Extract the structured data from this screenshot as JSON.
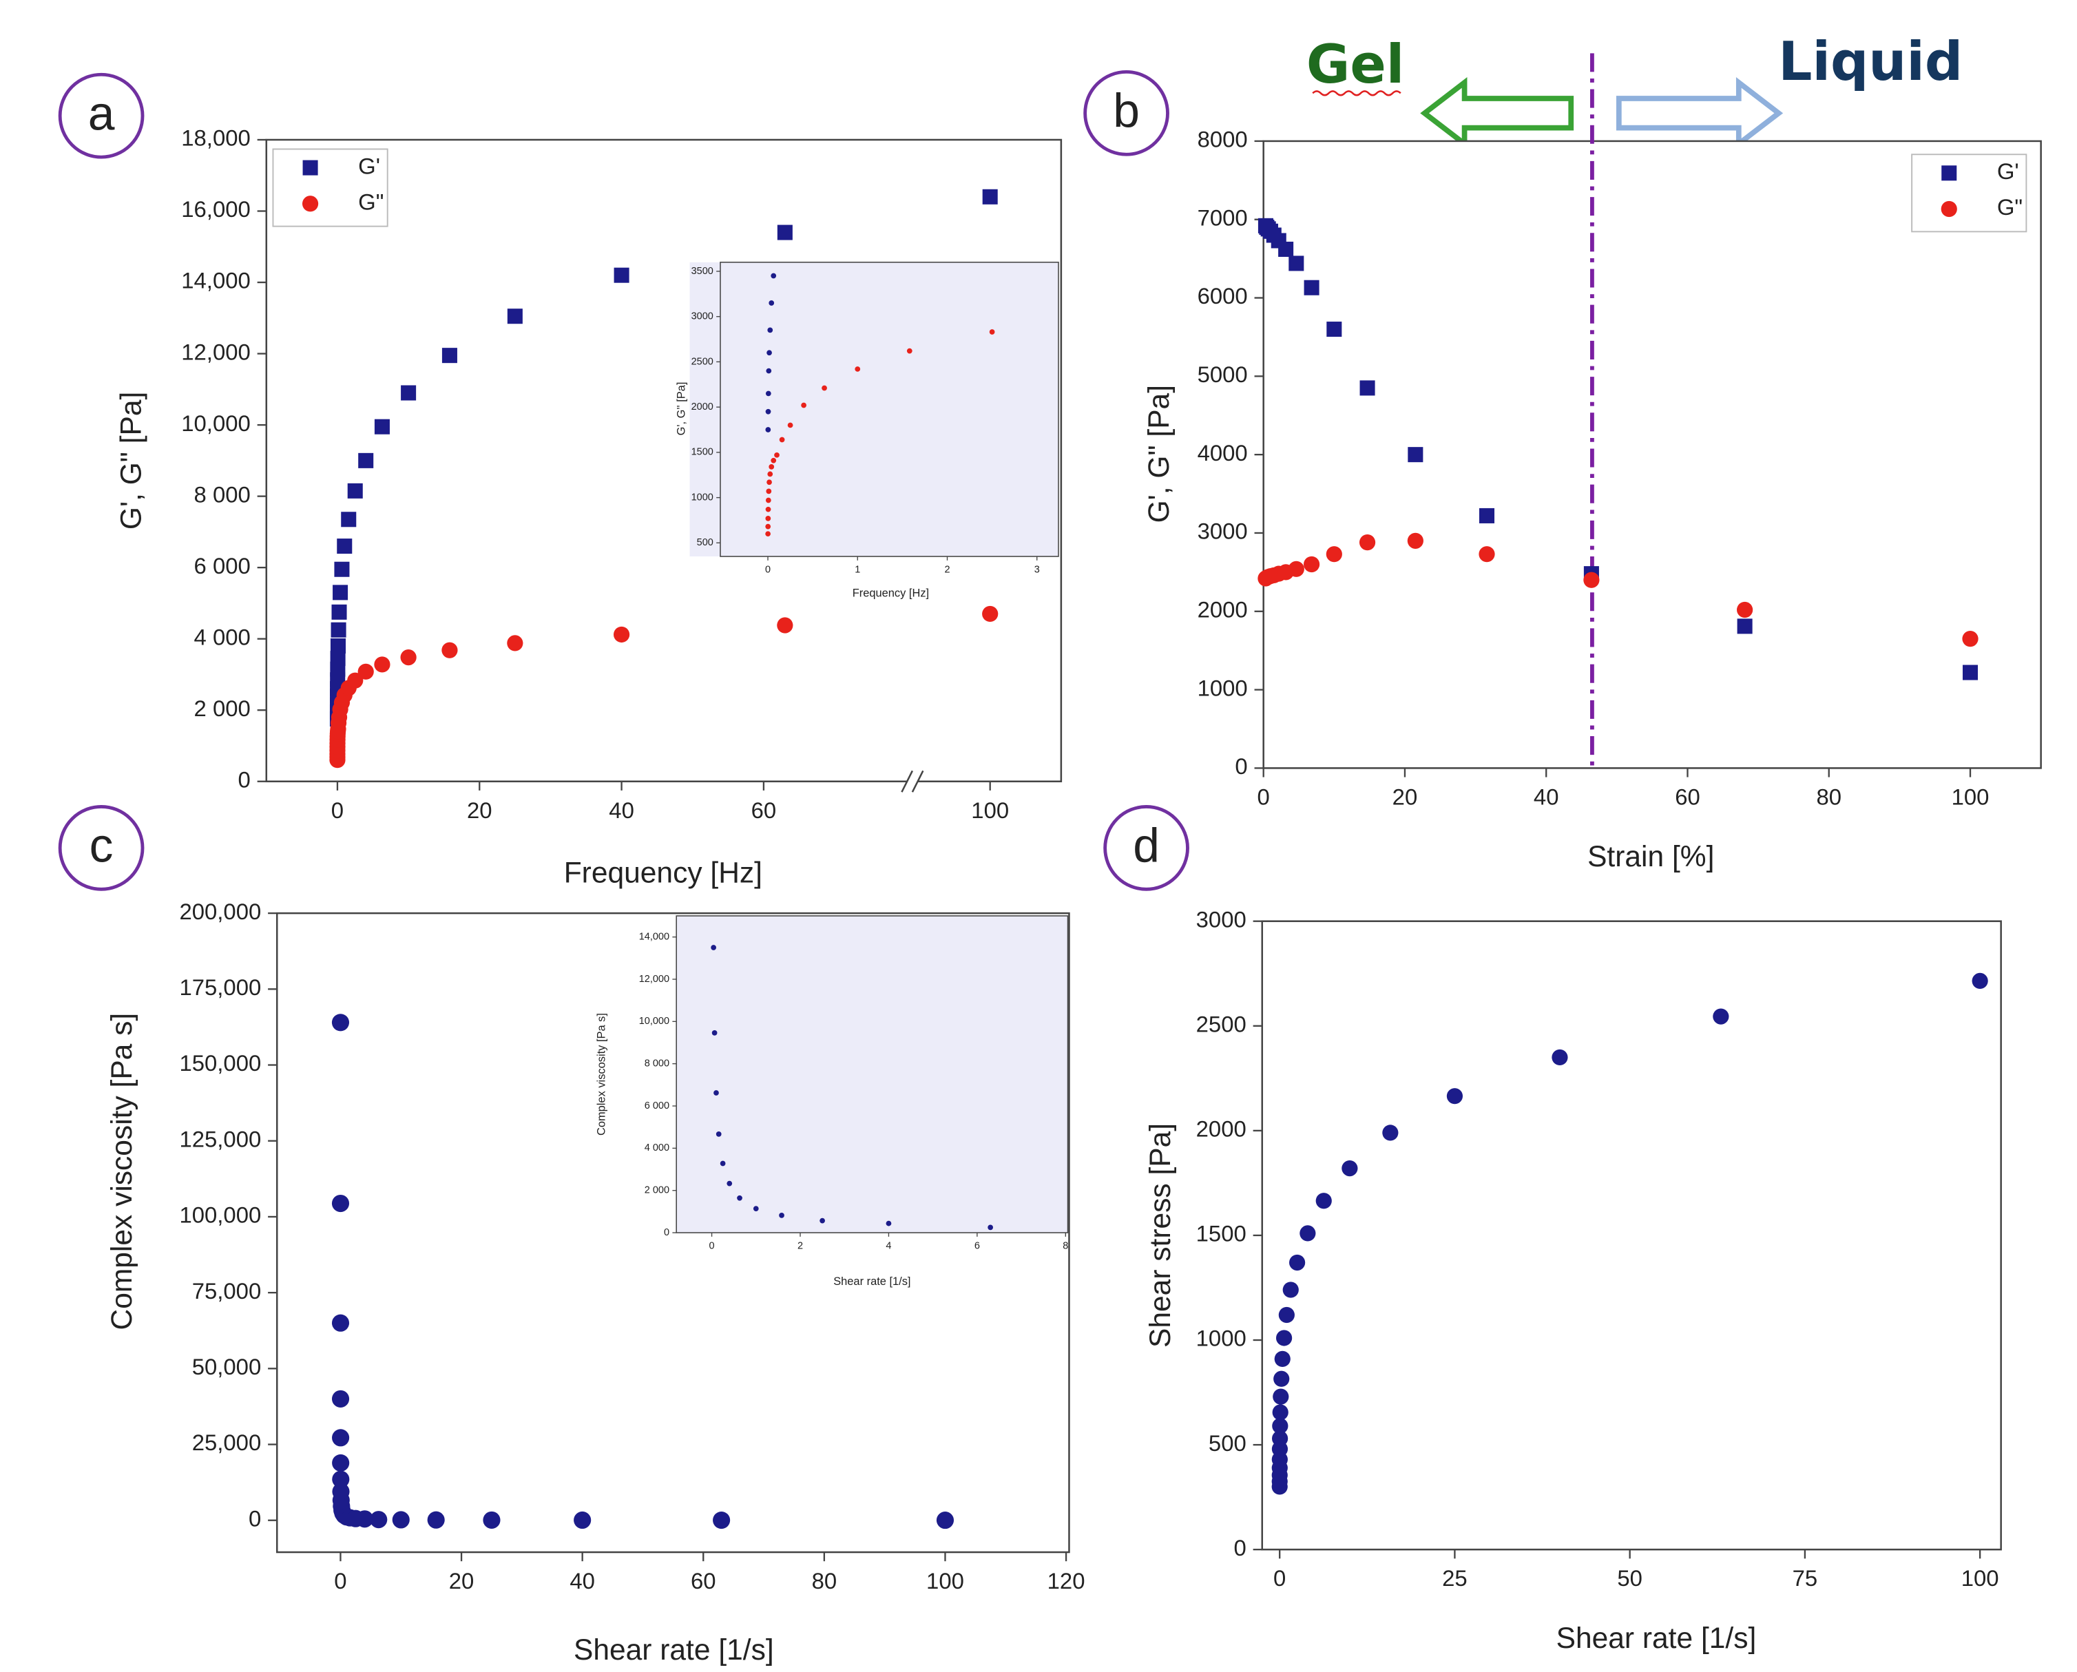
{
  "chart_data": [
    {
      "type": "scatter",
      "label": "a",
      "xlabel": "Frequency [Hz]",
      "ylabel": "G', G\" [Pa]",
      "xlim": [
        -10,
        110
      ],
      "xbreak": [
        80,
        90
      ],
      "xticks": [
        0,
        20,
        40,
        60,
        100
      ],
      "ylim": [
        0,
        18000
      ],
      "yticks": [
        0,
        {
          "value": 2000,
          "label": "2 000"
        },
        {
          "value": 4000,
          "label": "4 000"
        },
        {
          "value": 6000,
          "label": "6 000"
        },
        {
          "value": 8000,
          "label": "8 000"
        },
        {
          "value": 10000,
          "label": "10,000"
        },
        {
          "value": 12000,
          "label": "12,000"
        },
        {
          "value": 14000,
          "label": "14,000"
        },
        {
          "value": 16000,
          "label": "16,000"
        },
        {
          "value": 18000,
          "label": "18,000"
        }
      ],
      "legend": "upper left",
      "series": [
        {
          "name": "G'",
          "color": "#1c1c8a",
          "marker": "square",
          "x": [
            0.0025,
            0.004,
            0.0063,
            0.01,
            0.0158,
            0.025,
            0.04,
            0.063,
            0.1,
            0.158,
            0.25,
            0.4,
            0.63,
            1,
            1.58,
            2.5,
            4,
            6.3,
            10,
            15.8,
            25,
            40,
            63,
            100
          ],
          "values": [
            1750,
            1950,
            2150,
            2400,
            2600,
            2850,
            3150,
            3450,
            3800,
            4250,
            4750,
            5300,
            5950,
            6600,
            7350,
            8150,
            9000,
            9950,
            10900,
            11950,
            13050,
            14200,
            15400,
            16400
          ]
        },
        {
          "name": "G\"",
          "color": "#e8221b",
          "marker": "circle",
          "x": [
            0.001,
            0.00158,
            0.0025,
            0.004,
            0.0063,
            0.01,
            0.0158,
            0.025,
            0.04,
            0.063,
            0.1,
            0.158,
            0.25,
            0.4,
            0.63,
            1,
            1.58,
            2.5,
            4,
            6.3,
            10,
            15.8,
            25,
            40,
            63,
            100
          ],
          "values": [
            600,
            680,
            770,
            870,
            970,
            1070,
            1170,
            1260,
            1340,
            1410,
            1470,
            1640,
            1800,
            2020,
            2210,
            2420,
            2620,
            2830,
            3080,
            3280,
            3480,
            3680,
            3880,
            4120,
            4380,
            4700
          ]
        }
      ]
    },
    {
      "type": "scatter",
      "xlabel": "Frequency [Hz]",
      "ylabel": "G', G'' [Pa]",
      "background": "#ececf9",
      "xlim": [
        -0.53,
        3.24
      ],
      "xticks": [
        0,
        1,
        2,
        3
      ],
      "ylim": [
        350,
        3600
      ],
      "yticks": [
        500,
        1000,
        1500,
        2000,
        2500,
        3000,
        3500
      ],
      "series": [
        {
          "color": "#1c1c8a",
          "marker": "circle",
          "x": [
            0.0025,
            0.004,
            0.0063,
            0.01,
            0.0158,
            0.025,
            0.04,
            0.063
          ],
          "values": [
            1750,
            1950,
            2150,
            2400,
            2600,
            2850,
            3150,
            3450
          ]
        },
        {
          "color": "#e8221b",
          "marker": "circle",
          "x": [
            0.001,
            0.00158,
            0.0025,
            0.004,
            0.0063,
            0.01,
            0.0158,
            0.025,
            0.04,
            0.063,
            0.1,
            0.158,
            0.25,
            0.4,
            0.63,
            1,
            1.58,
            2.5
          ],
          "values": [
            600,
            680,
            770,
            870,
            970,
            1070,
            1170,
            1260,
            1340,
            1410,
            1470,
            1640,
            1800,
            2020,
            2210,
            2420,
            2620,
            2830
          ]
        }
      ]
    },
    {
      "type": "scatter",
      "label": "b",
      "xlabel": "Strain [%]",
      "ylabel": "G', G\" [Pa]",
      "annotations": [
        "Gel",
        "Liquid"
      ],
      "vline": 46.5,
      "vline_color": "#7b1fa2",
      "xlim": [
        0,
        110
      ],
      "xticks": [
        0,
        20,
        40,
        60,
        80,
        100
      ],
      "ylim": [
        0,
        8000
      ],
      "yticks": [
        0,
        1000,
        2000,
        3000,
        4000,
        5000,
        6000,
        7000,
        8000
      ],
      "legend": "upper right",
      "series": [
        {
          "name": "G'",
          "color": "#1c1c8a",
          "marker": "square",
          "x": [
            0.316,
            0.464,
            0.681,
            1,
            1.47,
            2.15,
            3.16,
            4.64,
            6.81,
            10,
            14.7,
            21.5,
            31.6,
            46.4,
            68.1,
            100
          ],
          "values": [
            6920,
            6900,
            6880,
            6850,
            6800,
            6730,
            6620,
            6440,
            6130,
            5600,
            4850,
            4000,
            3220,
            2480,
            1810,
            1220
          ]
        },
        {
          "name": "G\"",
          "color": "#e8221b",
          "marker": "circle",
          "x": [
            0.316,
            0.464,
            0.681,
            1,
            1.47,
            2.15,
            3.16,
            4.64,
            6.81,
            10,
            14.7,
            21.5,
            31.6,
            46.4,
            68.1,
            100
          ],
          "values": [
            2420,
            2430,
            2440,
            2450,
            2460,
            2480,
            2500,
            2540,
            2600,
            2730,
            2880,
            2900,
            2730,
            2400,
            2020,
            1650
          ]
        }
      ]
    },
    {
      "type": "scatter",
      "label": "c",
      "xlabel": "Shear rate [1/s]",
      "ylabel": "Complex viscosity [Pa s]",
      "xlim": [
        -10.5,
        120.5
      ],
      "xticks": [
        0,
        20,
        40,
        60,
        80,
        100,
        120
      ],
      "ylim": [
        -10500,
        200000
      ],
      "yticks": [
        0,
        {
          "value": 25000,
          "label": "25,000"
        },
        {
          "value": 50000,
          "label": "50,000"
        },
        {
          "value": 75000,
          "label": "75,000"
        },
        {
          "value": 100000,
          "label": "100,000"
        },
        {
          "value": 125000,
          "label": "125,000"
        },
        {
          "value": 150000,
          "label": "150,000"
        },
        {
          "value": 175000,
          "label": "175,000"
        },
        {
          "value": 200000,
          "label": "200,000"
        }
      ],
      "series": [
        {
          "color": "#1c1c8a",
          "marker": "circle",
          "x": [
            0.0025,
            0.004,
            0.0063,
            0.01,
            0.0158,
            0.025,
            0.04,
            0.063,
            0.1,
            0.158,
            0.25,
            0.4,
            0.63,
            1,
            1.58,
            2.5,
            4,
            6.3,
            10,
            15.8,
            25,
            40,
            63,
            100
          ],
          "values": [
            164000,
            104400,
            65000,
            40000,
            27200,
            18900,
            13500,
            9460,
            6620,
            4670,
            3280,
            2330,
            1640,
            1140,
            820,
            570,
            440,
            250,
            170,
            120,
            80,
            55,
            40,
            27
          ]
        }
      ]
    },
    {
      "type": "scatter",
      "xlabel": "Shear rate [1/s]",
      "ylabel": "Complex viscosity [Pa s]",
      "background": "#ececf9",
      "xlim": [
        -0.8,
        8.05
      ],
      "xticks": [
        0,
        2,
        4,
        6,
        8
      ],
      "ylim": [
        0,
        15000
      ],
      "yticks": [
        0,
        {
          "value": 2000,
          "label": "2 000"
        },
        {
          "value": 4000,
          "label": "4 000"
        },
        {
          "value": 6000,
          "label": "6 000"
        },
        {
          "value": 8000,
          "label": "8 000"
        },
        {
          "value": 10000,
          "label": "10,000"
        },
        {
          "value": 12000,
          "label": "12,000"
        },
        {
          "value": 14000,
          "label": "14,000"
        }
      ],
      "series": [
        {
          "color": "#1c1c8a",
          "marker": "circle",
          "x": [
            0.04,
            0.063,
            0.1,
            0.158,
            0.25,
            0.4,
            0.63,
            1,
            1.58,
            2.5,
            4,
            6.3
          ],
          "values": [
            13500,
            9460,
            6620,
            4670,
            3280,
            2330,
            1640,
            1140,
            820,
            570,
            440,
            250
          ]
        }
      ]
    },
    {
      "type": "scatter",
      "label": "d",
      "xlabel": "Shear rate [1/s]",
      "ylabel": "Shear stress [Pa]",
      "xlim": [
        -2.5,
        103
      ],
      "xticks": [
        0,
        25,
        50,
        75,
        100
      ],
      "ylim": [
        0,
        3000
      ],
      "yticks": [
        0,
        500,
        1000,
        1500,
        2000,
        2500,
        3000
      ],
      "series": [
        {
          "color": "#1c1c8a",
          "marker": "circle",
          "x": [
            0.0025,
            0.004,
            0.0063,
            0.01,
            0.0158,
            0.025,
            0.04,
            0.063,
            0.1,
            0.158,
            0.25,
            0.4,
            0.63,
            1,
            1.58,
            2.5,
            4,
            6.3,
            10,
            15.8,
            25,
            40,
            63,
            100
          ],
          "values": [
            300,
            325,
            355,
            390,
            430,
            480,
            530,
            590,
            655,
            730,
            815,
            910,
            1010,
            1120,
            1240,
            1370,
            1510,
            1665,
            1820,
            1990,
            2165,
            2350,
            2545,
            2715
          ]
        }
      ]
    }
  ]
}
